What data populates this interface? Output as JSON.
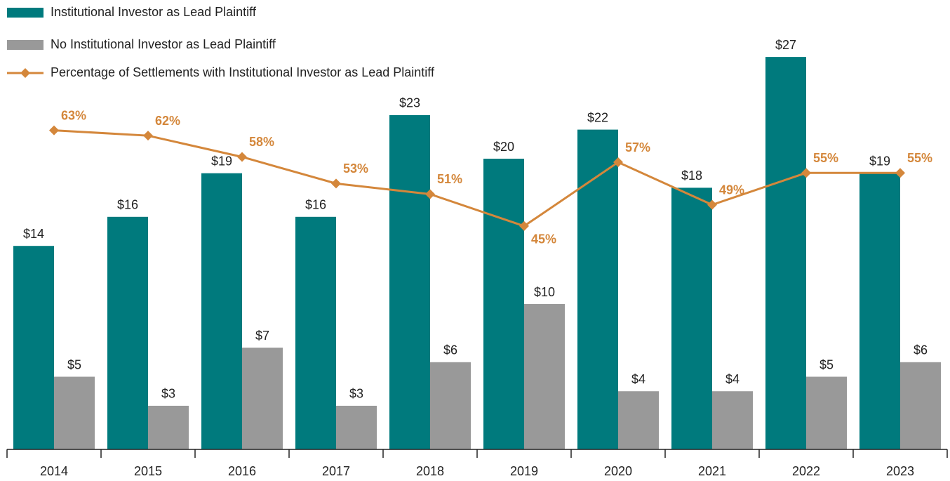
{
  "chart_data": {
    "type": "bar_line",
    "categories": [
      "2014",
      "2015",
      "2016",
      "2017",
      "2018",
      "2019",
      "2020",
      "2021",
      "2022",
      "2023"
    ],
    "series": [
      {
        "name": "Institutional Investor as Lead Plaintiff",
        "color": "#007a7d",
        "type": "bar",
        "values": [
          14,
          16,
          19,
          16,
          23,
          20,
          22,
          18,
          27,
          19
        ],
        "value_labels": [
          "$14",
          "$16",
          "$19",
          "$16",
          "$23",
          "$20",
          "$22",
          "$18",
          "$27",
          "$19"
        ]
      },
      {
        "name": "No Institutional Investor as Lead Plaintiff",
        "color": "#999999",
        "type": "bar",
        "values": [
          5,
          3,
          7,
          3,
          6,
          10,
          4,
          4,
          5,
          6
        ],
        "value_labels": [
          "$5",
          "$3",
          "$7",
          "$3",
          "$6",
          "$10",
          "$4",
          "$4",
          "$5",
          "$6"
        ]
      },
      {
        "name": "Percentage of Settlements with Institutional Investor as Lead Plaintiff",
        "color": "#d4873b",
        "type": "line",
        "axis": "y2",
        "values": [
          63,
          62,
          58,
          53,
          51,
          45,
          57,
          49,
          55,
          55
        ],
        "value_labels": [
          "63%",
          "62%",
          "58%",
          "53%",
          "51%",
          "45%",
          "57%",
          "49%",
          "55%",
          "55%"
        ]
      }
    ],
    "ylim": [
      0,
      30
    ],
    "y2lim": [
      3,
      85
    ],
    "legend": "top-left"
  }
}
